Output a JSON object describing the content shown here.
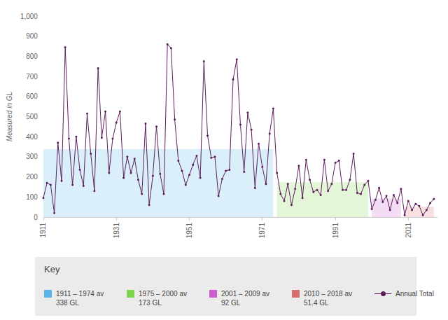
{
  "chart_data": {
    "type": "line",
    "y_label": "Measured in GL",
    "key_title": "Key",
    "x": [
      1911,
      1912,
      1913,
      1914,
      1915,
      1916,
      1917,
      1918,
      1919,
      1920,
      1921,
      1922,
      1923,
      1924,
      1925,
      1926,
      1927,
      1928,
      1929,
      1930,
      1931,
      1932,
      1933,
      1934,
      1935,
      1936,
      1937,
      1938,
      1939,
      1940,
      1941,
      1942,
      1943,
      1944,
      1945,
      1946,
      1947,
      1948,
      1949,
      1950,
      1951,
      1952,
      1953,
      1954,
      1955,
      1956,
      1957,
      1958,
      1959,
      1960,
      1961,
      1962,
      1963,
      1964,
      1965,
      1966,
      1967,
      1968,
      1969,
      1970,
      1971,
      1972,
      1973,
      1974,
      1975,
      1976,
      1977,
      1978,
      1979,
      1980,
      1981,
      1982,
      1983,
      1984,
      1985,
      1986,
      1987,
      1988,
      1989,
      1990,
      1991,
      1992,
      1993,
      1994,
      1995,
      1996,
      1997,
      1998,
      1999,
      2000,
      2001,
      2002,
      2003,
      2004,
      2005,
      2006,
      2007,
      2008,
      2009,
      2010,
      2011,
      2012,
      2013,
      2014,
      2015,
      2016,
      2017,
      2018
    ],
    "series": [
      {
        "name": "Annual Total",
        "color": "#5c1f5c",
        "marker": "circle",
        "values": [
          95,
          170,
          160,
          20,
          370,
          180,
          845,
          390,
          160,
          400,
          235,
          155,
          515,
          315,
          130,
          740,
          395,
          525,
          220,
          390,
          470,
          525,
          195,
          300,
          220,
          290,
          185,
          115,
          465,
          60,
          205,
          450,
          215,
          115,
          860,
          840,
          485,
          280,
          230,
          160,
          210,
          260,
          305,
          195,
          775,
          405,
          295,
          300,
          105,
          190,
          230,
          235,
          685,
          785,
          460,
          225,
          520,
          435,
          145,
          365,
          250,
          165,
          415,
          540,
          220,
          115,
          80,
          165,
          60,
          140,
          255,
          95,
          285,
          185,
          125,
          135,
          110,
          285,
          130,
          165,
          270,
          280,
          135,
          135,
          185,
          315,
          120,
          115,
          160,
          180,
          40,
          85,
          145,
          75,
          105,
          35,
          110,
          70,
          140,
          10,
          80,
          35,
          65,
          55,
          10,
          35,
          70,
          90
        ]
      }
    ],
    "areas": [
      {
        "name": "1911 – 1974 av",
        "start": 1911,
        "end": 1974,
        "value": 338,
        "value_label": "338 GL",
        "color": "#5ab4e6"
      },
      {
        "name": "1975 – 2000 av",
        "start": 1975,
        "end": 2000,
        "value": 173,
        "value_label": "173 GL",
        "color": "#7ed44e"
      },
      {
        "name": "2001 – 2009 av",
        "start": 2001,
        "end": 2009,
        "value": 92,
        "value_label": "92 GL",
        "color": "#c85fcc"
      },
      {
        "name": "2010 – 2018 av",
        "start": 2010,
        "end": 2018,
        "value": 51.4,
        "value_label": "51.4 GL",
        "color": "#d67070"
      }
    ],
    "xlim": [
      1911,
      2019
    ],
    "xticks": [
      1911,
      1931,
      1951,
      1971,
      1991,
      2011
    ],
    "ylim": [
      0,
      1000
    ],
    "yticks": [
      0,
      100,
      200,
      300,
      400,
      500,
      600,
      700,
      800,
      900,
      1000
    ],
    "grid": false
  }
}
